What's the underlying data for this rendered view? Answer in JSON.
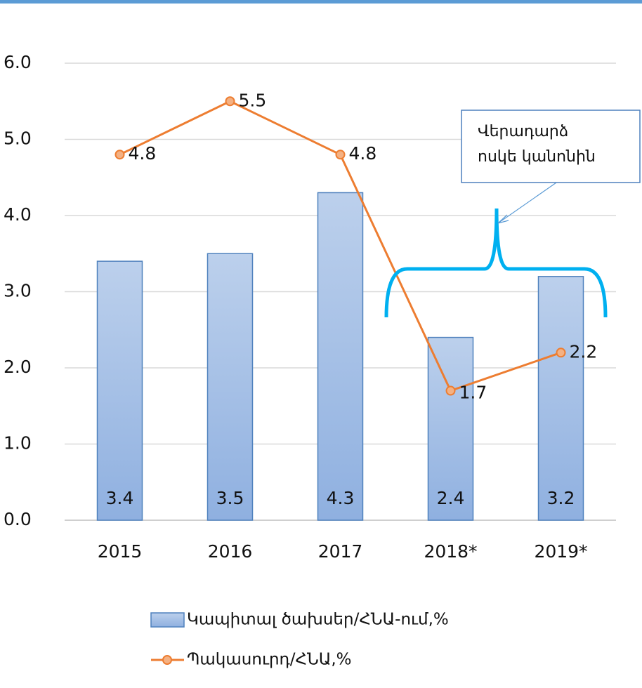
{
  "chart_data": {
    "type": "combo",
    "categories": [
      "2015",
      "2016",
      "2017",
      "2018*",
      "2019*"
    ],
    "series": [
      {
        "name": "Կապիտալ ծախսեր/ՀՆԱ-ում,%",
        "type": "bar",
        "color": "#9dbbe6",
        "values": [
          3.4,
          3.5,
          4.3,
          2.4,
          3.2
        ]
      },
      {
        "name": "Պակասուրդ/ՀՆԱ,%",
        "type": "line",
        "color": "#ed7d31",
        "values": [
          4.8,
          5.5,
          4.8,
          1.7,
          2.2
        ]
      }
    ],
    "ylim": [
      0,
      6
    ],
    "yticks": [
      {
        "value": 0,
        "label": "0.0"
      },
      {
        "value": 1,
        "label": "1.0"
      },
      {
        "value": 2,
        "label": "2.0"
      },
      {
        "value": 3,
        "label": "3.0"
      },
      {
        "value": 4,
        "label": "4.0"
      },
      {
        "value": 5,
        "label": "5.0"
      },
      {
        "value": 6,
        "label": "6.0"
      }
    ],
    "grid": true,
    "annotation": [
      "Վերադարձ",
      "ոսկե կանոնին"
    ]
  }
}
